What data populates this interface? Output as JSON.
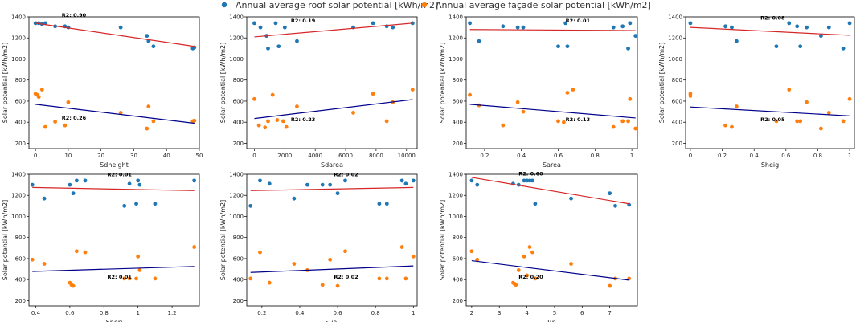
{
  "legend": [
    {
      "label": "Annual average roof solar potential [kWh/m2]",
      "color": "#1f77b4"
    },
    {
      "label": "Annual average façade solar potential [kWh/m2]",
      "color": "#ff7f0e"
    }
  ],
  "colors": {
    "roof_points": "#1f77b4",
    "facade_points": "#ff7f0e",
    "roof_fit": "#d62728",
    "facade_fit": "#00008b"
  },
  "chart_data": [
    {
      "type": "scatter",
      "xlabel": "Sdheight",
      "ylabel": "Solar potential [kWh/m2]",
      "xlim": [
        -2,
        50
      ],
      "ylim": [
        150,
        1400
      ],
      "xticks": [
        0,
        10,
        20,
        30,
        40,
        50
      ],
      "yticks": [
        200,
        400,
        600,
        800,
        1000,
        1200,
        1400
      ],
      "roof": {
        "x": [
          0,
          1,
          2,
          3,
          6,
          9,
          10,
          26,
          34,
          34.5,
          36,
          48,
          48.5
        ],
        "y": [
          1340,
          1340,
          1330,
          1340,
          1310,
          1310,
          1300,
          1300,
          1220,
          1170,
          1120,
          1100,
          1110
        ]
      },
      "facade": {
        "x": [
          0,
          0.5,
          1,
          2,
          3,
          6,
          9,
          10,
          26,
          34,
          34.5,
          36,
          48,
          48.5
        ],
        "y": [
          670,
          660,
          640,
          710,
          355,
          405,
          370,
          590,
          490,
          340,
          550,
          410,
          410,
          415
        ]
      },
      "roof_fit": {
        "x": [
          0,
          48.5
        ],
        "y": [
          1340,
          1120
        ]
      },
      "facade_fit": {
        "x": [
          0,
          48.5
        ],
        "y": [
          570,
          390
        ]
      },
      "r2_roof": "R2: 0.90",
      "r2_facade": "R2: 0.26",
      "r2_roof_at": [
        8,
        1400
      ],
      "r2_facade_at": [
        8,
        425
      ]
    },
    {
      "type": "scatter",
      "xlabel": "Sdarea",
      "ylabel": "Solar potential [kWh/m2]",
      "xlim": [
        -500,
        10700
      ],
      "ylim": [
        150,
        1400
      ],
      "xticks": [
        0,
        2000,
        4000,
        6000,
        8000,
        10000
      ],
      "yticks": [
        200,
        400,
        600,
        800,
        1000,
        1200,
        1400
      ],
      "roof": {
        "x": [
          0,
          400,
          800,
          900,
          1400,
          1600,
          2000,
          2800,
          6500,
          7800,
          8700,
          9100,
          10400
        ],
        "y": [
          1340,
          1300,
          1220,
          1100,
          1340,
          1120,
          1300,
          1170,
          1300,
          1340,
          1310,
          1300,
          1340
        ]
      },
      "facade": {
        "x": [
          0,
          300,
          700,
          900,
          1200,
          1500,
          1900,
          2100,
          2800,
          6500,
          7800,
          8700,
          9100,
          10400
        ],
        "y": [
          620,
          370,
          350,
          410,
          660,
          420,
          410,
          355,
          550,
          490,
          670,
          410,
          590,
          710
        ]
      },
      "roof_fit": {
        "x": [
          0,
          10400
        ],
        "y": [
          1210,
          1340
        ]
      },
      "facade_fit": {
        "x": [
          0,
          10400
        ],
        "y": [
          435,
          615
        ]
      },
      "r2_roof": "R2: 0.19",
      "r2_facade": "R2: 0.23",
      "r2_roof_at": [
        2400,
        1345
      ],
      "r2_facade_at": [
        2400,
        410
      ]
    },
    {
      "type": "scatter",
      "xlabel": "Sarea",
      "ylabel": "Solar potential [kWh/m2]",
      "xlim": [
        0.1,
        1.03
      ],
      "ylim": [
        150,
        1400
      ],
      "xticks": [
        0.2,
        0.4,
        0.6,
        0.8,
        1.0
      ],
      "yticks": [
        200,
        400,
        600,
        800,
        1000,
        1200,
        1400
      ],
      "roof": {
        "x": [
          0.12,
          0.17,
          0.3,
          0.38,
          0.41,
          0.6,
          0.64,
          0.65,
          0.9,
          0.95,
          0.98,
          0.99,
          1.02
        ],
        "y": [
          1340,
          1170,
          1310,
          1300,
          1300,
          1120,
          1340,
          1120,
          1300,
          1310,
          1100,
          1340,
          1220
        ]
      },
      "facade": {
        "x": [
          0.12,
          0.17,
          0.3,
          0.38,
          0.41,
          0.6,
          0.63,
          0.65,
          0.68,
          0.9,
          0.95,
          0.98,
          0.99,
          1.02
        ],
        "y": [
          660,
          560,
          370,
          590,
          500,
          410,
          400,
          680,
          710,
          355,
          410,
          410,
          620,
          340
        ]
      },
      "roof_fit": {
        "x": [
          0.12,
          1.02
        ],
        "y": [
          1280,
          1270
        ]
      },
      "facade_fit": {
        "x": [
          0.12,
          1.02
        ],
        "y": [
          570,
          440
        ]
      },
      "r2_roof": "R2: 0.01",
      "r2_facade": "R2: 0.13",
      "r2_roof_at": [
        0.64,
        1345
      ],
      "r2_facade_at": [
        0.64,
        410
      ]
    },
    {
      "type": "scatter",
      "xlabel": "Sheig",
      "ylabel": "Solar potential [kWh/m2]",
      "xlim": [
        -0.03,
        1.03
      ],
      "ylim": [
        150,
        1400
      ],
      "xticks": [
        0.0,
        0.2,
        0.4,
        0.6,
        0.8,
        1.0
      ],
      "yticks": [
        200,
        400,
        600,
        800,
        1000,
        1200,
        1400
      ],
      "roof": {
        "x": [
          0,
          0.22,
          0.26,
          0.29,
          0.54,
          0.62,
          0.67,
          0.69,
          0.73,
          0.82,
          0.87,
          0.96,
          1.0
        ],
        "y": [
          1340,
          1310,
          1300,
          1170,
          1120,
          1340,
          1310,
          1120,
          1300,
          1220,
          1300,
          1100,
          1340
        ]
      },
      "facade": {
        "x": [
          0,
          0,
          0.22,
          0.26,
          0.29,
          0.54,
          0.62,
          0.67,
          0.69,
          0.73,
          0.82,
          0.87,
          0.96,
          1.0
        ],
        "y": [
          670,
          650,
          370,
          355,
          550,
          410,
          710,
          410,
          410,
          590,
          340,
          490,
          410,
          620
        ]
      },
      "roof_fit": {
        "x": [
          0,
          1.0
        ],
        "y": [
          1300,
          1225
        ]
      },
      "facade_fit": {
        "x": [
          0,
          1.0
        ],
        "y": [
          545,
          460
        ]
      },
      "r2_roof": "R2: 0.08",
      "r2_facade": "R2: 0.05",
      "r2_roof_at": [
        0.44,
        1375
      ],
      "r2_facade_at": [
        0.44,
        410
      ]
    },
    {
      "type": "scatter",
      "xlabel": "Speri",
      "ylabel": "Solar potential [kWh/m2]",
      "xlim": [
        0.36,
        1.36
      ],
      "ylim": [
        150,
        1400
      ],
      "xticks": [
        0.4,
        0.6,
        0.8,
        1.0,
        1.2
      ],
      "yticks": [
        200,
        400,
        600,
        800,
        1000,
        1200,
        1400
      ],
      "roof": {
        "x": [
          0.38,
          0.45,
          0.6,
          0.62,
          0.64,
          0.69,
          0.92,
          0.95,
          0.99,
          1.0,
          1.01,
          1.1,
          1.33
        ],
        "y": [
          1300,
          1170,
          1300,
          1220,
          1340,
          1340,
          1100,
          1310,
          1120,
          1340,
          1300,
          1120,
          1340
        ]
      },
      "facade": {
        "x": [
          0.38,
          0.45,
          0.6,
          0.61,
          0.62,
          0.64,
          0.69,
          0.92,
          0.95,
          0.99,
          1.0,
          1.01,
          1.1,
          1.33
        ],
        "y": [
          590,
          550,
          370,
          350,
          340,
          670,
          660,
          410,
          410,
          410,
          620,
          490,
          410,
          710
        ]
      },
      "roof_fit": {
        "x": [
          0.38,
          1.33
        ],
        "y": [
          1275,
          1245
        ]
      },
      "facade_fit": {
        "x": [
          0.38,
          1.33
        ],
        "y": [
          478,
          525
        ]
      },
      "r2_roof": "R2: 0.01",
      "r2_facade": "R2: 0.01",
      "r2_roof_at": [
        0.82,
        1380
      ],
      "r2_facade_at": [
        0.82,
        410
      ]
    },
    {
      "type": "scatter",
      "xlabel": "Svol",
      "ylabel": "Solar potential [kWh/m2]",
      "xlim": [
        0.12,
        1.02
      ],
      "ylim": [
        150,
        1400
      ],
      "xticks": [
        0.2,
        0.4,
        0.6,
        0.8,
        1.0
      ],
      "yticks": [
        200,
        400,
        600,
        800,
        1000,
        1200,
        1400
      ],
      "roof": {
        "x": [
          0.14,
          0.19,
          0.24,
          0.37,
          0.44,
          0.52,
          0.56,
          0.6,
          0.64,
          0.82,
          0.86,
          0.94,
          0.96,
          1.0
        ],
        "y": [
          1100,
          1340,
          1310,
          1170,
          1300,
          1300,
          1300,
          1220,
          1340,
          1120,
          1120,
          1340,
          1310,
          1340
        ]
      },
      "facade": {
        "x": [
          0.14,
          0.19,
          0.24,
          0.37,
          0.44,
          0.52,
          0.56,
          0.6,
          0.64,
          0.82,
          0.86,
          0.94,
          0.96,
          1.0
        ],
        "y": [
          410,
          660,
          370,
          550,
          490,
          350,
          590,
          340,
          670,
          410,
          410,
          710,
          410,
          620
        ]
      },
      "roof_fit": {
        "x": [
          0.14,
          1.0
        ],
        "y": [
          1245,
          1275
        ]
      },
      "facade_fit": {
        "x": [
          0.14,
          1.0
        ],
        "y": [
          468,
          530
        ]
      },
      "r2_roof": "R2: 0.02",
      "r2_facade": "R2: 0.02",
      "r2_roof_at": [
        0.58,
        1380
      ],
      "r2_facade_at": [
        0.58,
        410
      ]
    },
    {
      "type": "scatter",
      "xlabel": "Rn",
      "ylabel": "Solar potential [kWh/m2]",
      "xlim": [
        1.8,
        8.0
      ],
      "ylim": [
        150,
        1400
      ],
      "xticks": [
        2,
        3,
        4,
        5,
        6,
        7
      ],
      "yticks": [
        200,
        400,
        600,
        800,
        1000,
        1200,
        1400
      ],
      "roof": {
        "x": [
          2.0,
          2.2,
          3.5,
          3.7,
          3.9,
          4.0,
          4.1,
          4.2,
          4.3,
          5.6,
          7.0,
          7.2,
          7.7
        ],
        "y": [
          1340,
          1300,
          1310,
          1300,
          1340,
          1340,
          1340,
          1340,
          1120,
          1170,
          1220,
          1100,
          1110
        ]
      },
      "facade": {
        "x": [
          2.0,
          2.2,
          3.5,
          3.55,
          3.6,
          3.7,
          3.9,
          4.0,
          4.1,
          4.2,
          4.3,
          5.6,
          7.0,
          7.2,
          7.7
        ],
        "y": [
          670,
          590,
          370,
          360,
          350,
          490,
          620,
          440,
          710,
          660,
          410,
          550,
          340,
          410,
          410
        ]
      },
      "roof_fit": {
        "x": [
          2.0,
          7.7
        ],
        "y": [
          1370,
          1120
        ]
      },
      "facade_fit": {
        "x": [
          2.0,
          7.7
        ],
        "y": [
          580,
          395
        ]
      },
      "r2_roof": "R2: 0.60",
      "r2_facade": "R2: 0.20",
      "r2_roof_at": [
        3.7,
        1390
      ],
      "r2_facade_at": [
        3.7,
        410
      ]
    }
  ]
}
